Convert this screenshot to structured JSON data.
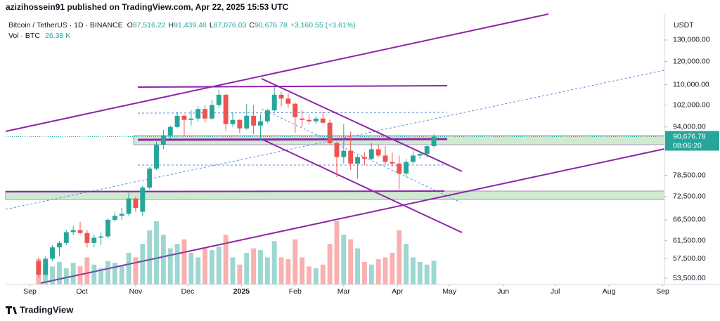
{
  "publisher": "azizihossein91 published on TradingView.com, Apr 22, 2025 15:53 UTC",
  "footer": "TradingView",
  "chart_data": {
    "type": "candlestick",
    "symbol": "Bitcoin / TetherUS · 1D · BINANCE",
    "ohlc_header": [
      [
        "O",
        "87,516.22"
      ],
      [
        "H",
        "91,439.46"
      ],
      [
        "L",
        "87,076.03"
      ],
      [
        "C",
        "90,676.78"
      ]
    ],
    "change": "+3,160.55 (+3.61%)",
    "volume_label": "Vol · BTC",
    "volume_value": "26.38 K",
    "currency": "USDT",
    "last_price_label": "90,676.78",
    "countdown": "08:06:20",
    "log": true,
    "up_color": "#26a69a",
    "down_color": "#ef5350",
    "xlim": [
      -14,
      366
    ],
    "xticks": [
      {
        "value": 0,
        "label": "Sep"
      },
      {
        "value": 30,
        "label": "Oct"
      },
      {
        "value": 61,
        "label": "Nov"
      },
      {
        "value": 91,
        "label": "Dec"
      },
      {
        "value": 122,
        "label": "2025"
      },
      {
        "value": 153,
        "label": "Feb"
      },
      {
        "value": 181,
        "label": "Mar"
      },
      {
        "value": 212,
        "label": "Apr"
      },
      {
        "value": 242,
        "label": "May"
      },
      {
        "value": 273,
        "label": "Jun"
      },
      {
        "value": 303,
        "label": "Jul"
      },
      {
        "value": 334,
        "label": "Aug"
      },
      {
        "value": 365,
        "label": "Sep"
      }
    ],
    "ylim": [
      52250,
      143200
    ],
    "yticks": [
      {
        "value": 53500,
        "label": "53,500.00"
      },
      {
        "value": 57500,
        "label": "57,500.00"
      },
      {
        "value": 61500,
        "label": "61,500.00"
      },
      {
        "value": 66500,
        "label": "66,500.00"
      },
      {
        "value": 72500,
        "label": "72,500.00"
      },
      {
        "value": 78500,
        "label": "78,500.00"
      },
      {
        "value": 94000,
        "label": "94,000.00"
      },
      {
        "value": 102000,
        "label": "102,000.00"
      },
      {
        "value": 110000,
        "label": "110,000.00"
      },
      {
        "value": 120000,
        "label": "120,000.00"
      },
      {
        "value": 130000,
        "label": "130,000.00"
      }
    ],
    "x": [
      5,
      9,
      13,
      17,
      21,
      25,
      29,
      33,
      37,
      41,
      45,
      49,
      53,
      57,
      61,
      65,
      69,
      73,
      77,
      81,
      85,
      89,
      93,
      97,
      101,
      105,
      109,
      113,
      117,
      121,
      125,
      129,
      133,
      137,
      141,
      145,
      149,
      153,
      157,
      161,
      165,
      169,
      173,
      177,
      181,
      185,
      189,
      193,
      197,
      201,
      205,
      209,
      213,
      217,
      221,
      225,
      229,
      233
    ],
    "open": [
      57000,
      54200,
      57500,
      60000,
      61000,
      63500,
      64000,
      63300,
      61000,
      62200,
      62500,
      66500,
      67500,
      68000,
      72000,
      68500,
      75000,
      80500,
      88000,
      91000,
      94000,
      98000,
      96500,
      97000,
      100500,
      97000,
      102000,
      106000,
      95000,
      96500,
      93500,
      98000,
      94500,
      96000,
      100000,
      106000,
      104500,
      102500,
      97000,
      96500,
      96000,
      97000,
      95500,
      88500,
      84000,
      86000,
      82000,
      84000,
      83500,
      86500,
      84500,
      82500,
      82000,
      79000,
      82500,
      84500,
      85000,
      87516.22
    ],
    "high": [
      57800,
      58000,
      60500,
      61500,
      64000,
      65000,
      66000,
      64000,
      63000,
      63500,
      67000,
      68500,
      69500,
      73500,
      72500,
      75500,
      81000,
      89000,
      93000,
      94500,
      99500,
      98500,
      100000,
      101500,
      102000,
      104000,
      108000,
      106500,
      99500,
      96800,
      102500,
      102000,
      98500,
      100500,
      109000,
      107000,
      106500,
      103000,
      100000,
      98500,
      98000,
      99500,
      96500,
      89000,
      95000,
      92500,
      84500,
      85500,
      88500,
      88000,
      87500,
      85500,
      84500,
      83500,
      86000,
      85500,
      87700,
      91439.46
    ],
    "low": [
      53600,
      54000,
      57000,
      58000,
      60500,
      62800,
      63000,
      60000,
      60000,
      60500,
      62000,
      66000,
      66500,
      67500,
      68500,
      67500,
      74500,
      80000,
      86500,
      90000,
      93500,
      91000,
      94500,
      96000,
      95500,
      96500,
      101000,
      92500,
      94000,
      92000,
      93000,
      91500,
      89500,
      95500,
      99500,
      101500,
      101000,
      92000,
      94000,
      95000,
      95000,
      95200,
      88000,
      78000,
      82000,
      80000,
      77500,
      81500,
      83000,
      84000,
      81500,
      81000,
      74500,
      78000,
      82000,
      83500,
      84000,
      87076.03
    ],
    "close": [
      54200,
      57500,
      60000,
      61000,
      63500,
      64000,
      63300,
      61000,
      62200,
      62500,
      66500,
      67500,
      68000,
      72000,
      69500,
      75000,
      80500,
      88000,
      91000,
      94000,
      98000,
      96500,
      97000,
      100500,
      97000,
      102000,
      106000,
      95000,
      96500,
      93500,
      98000,
      94500,
      96000,
      100000,
      106000,
      104500,
      102500,
      97500,
      96500,
      96000,
      97000,
      95500,
      88500,
      84000,
      86000,
      82000,
      84000,
      83500,
      86500,
      84500,
      82500,
      82000,
      79000,
      82500,
      84500,
      85000,
      87500,
      90676.78
    ],
    "volume": [
      28,
      22,
      20,
      25,
      18,
      24,
      20,
      30,
      22,
      18,
      26,
      24,
      20,
      35,
      30,
      45,
      60,
      70,
      55,
      40,
      45,
      50,
      35,
      30,
      40,
      38,
      42,
      55,
      30,
      22,
      35,
      40,
      38,
      30,
      48,
      30,
      28,
      50,
      30,
      20,
      18,
      22,
      45,
      70,
      55,
      50,
      40,
      25,
      22,
      28,
      30,
      35,
      60,
      45,
      30,
      25,
      22,
      26.38
    ]
  }
}
